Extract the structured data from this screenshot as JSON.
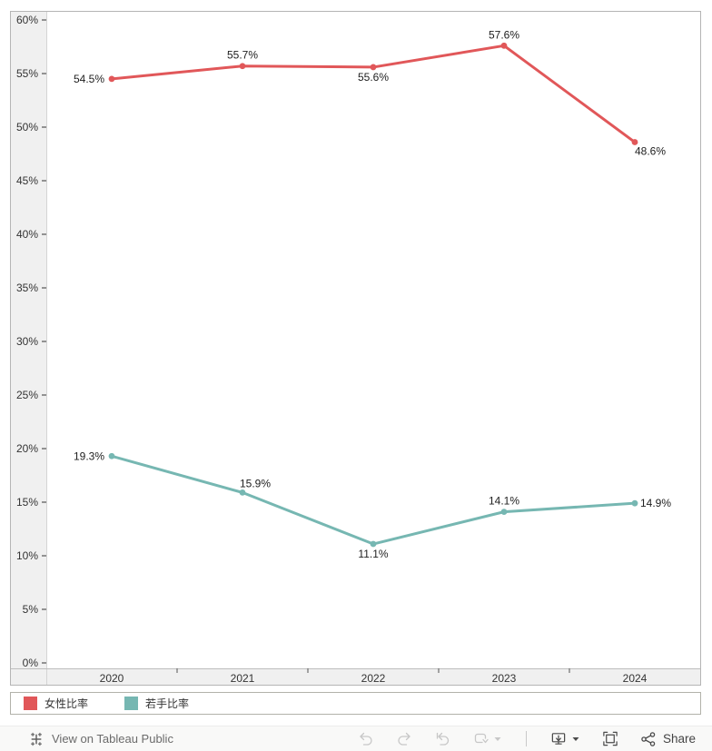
{
  "chart_data": {
    "type": "line",
    "categories": [
      "2020",
      "2021",
      "2022",
      "2023",
      "2024"
    ],
    "series": [
      {
        "name": "女性比率",
        "color": "#e15759",
        "values": [
          54.5,
          55.7,
          55.6,
          57.6,
          48.6
        ],
        "data_labels": [
          "54.5%",
          "55.7%",
          "55.6%",
          "57.6%",
          "48.6%"
        ],
        "label_positions": [
          "left",
          "above",
          "below",
          "above",
          "below-right"
        ]
      },
      {
        "name": "若手比率",
        "color": "#76b7b2",
        "values": [
          19.3,
          15.9,
          11.1,
          14.1,
          14.9
        ],
        "data_labels": [
          "19.3%",
          "15.9%",
          "11.1%",
          "14.1%",
          "14.9%"
        ],
        "label_positions": [
          "left",
          "above-right",
          "below",
          "above",
          "right"
        ]
      }
    ],
    "title": "",
    "xlabel": "",
    "ylabel": "",
    "ylim": [
      0,
      60
    ],
    "ytick_step": 5,
    "ytick_labels": [
      "0%",
      "5%",
      "10%",
      "15%",
      "20%",
      "25%",
      "30%",
      "35%",
      "40%",
      "45%",
      "50%",
      "55%",
      "60%"
    ],
    "grid": false,
    "legend_position": "bottom"
  },
  "legend": {
    "items": [
      {
        "label": "女性比率",
        "color": "#e15759"
      },
      {
        "label": "若手比率",
        "color": "#76b7b2"
      }
    ]
  },
  "toolbar": {
    "view_on_tableau_label": "View on Tableau Public",
    "share_label": "Share",
    "icons": [
      {
        "name": "tableau-logo-icon",
        "enabled": true
      },
      {
        "name": "undo-icon",
        "enabled": false
      },
      {
        "name": "redo-icon",
        "enabled": false
      },
      {
        "name": "reset-icon",
        "enabled": false
      },
      {
        "name": "refresh-icon",
        "enabled": false
      },
      {
        "name": "refresh-caret-icon",
        "enabled": false
      },
      {
        "name": "download-icon",
        "enabled": true
      },
      {
        "name": "download-caret-icon",
        "enabled": true
      },
      {
        "name": "fullscreen-icon",
        "enabled": true
      },
      {
        "name": "share-icon",
        "enabled": true
      }
    ]
  },
  "colors": {
    "axis_band_bg": "#f0f0f0",
    "chart_border": "#b5b5b5",
    "inner_grid_line": "#d4d4d4",
    "axis_text": "#333333",
    "data_label_text": "#1e1e1e",
    "toolbar_icon": "#4a4a4a",
    "toolbar_icon_disabled": "#c7c7c7"
  }
}
